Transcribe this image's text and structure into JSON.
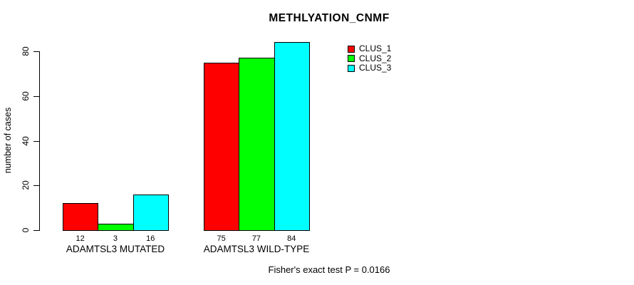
{
  "chart_data": {
    "type": "bar",
    "title": "METHLYATION_CNMF",
    "ylabel": "number of cases",
    "xlabel": "",
    "categories": [
      "ADAMTSL3 MUTATED",
      "ADAMTSL3 WILD-TYPE"
    ],
    "series": [
      {
        "name": "CLUS_1",
        "color": "#ff0000",
        "values": [
          12,
          75
        ]
      },
      {
        "name": "CLUS_2",
        "color": "#00ff00",
        "values": [
          3,
          77
        ]
      },
      {
        "name": "CLUS_3",
        "color": "#00ffff",
        "values": [
          16,
          84
        ]
      }
    ],
    "bar_value_labels": [
      [
        "12",
        "3",
        "16"
      ],
      [
        "75",
        "77",
        "84"
      ]
    ],
    "yticks": [
      0,
      20,
      40,
      60,
      80
    ],
    "ylim": [
      0,
      84
    ],
    "grid": false,
    "legend_position": "top-right",
    "annotation": "Fisher's exact test P = 0.0166"
  },
  "colors": {
    "axis": "#000000",
    "text": "#000000",
    "background": "#ffffff"
  }
}
